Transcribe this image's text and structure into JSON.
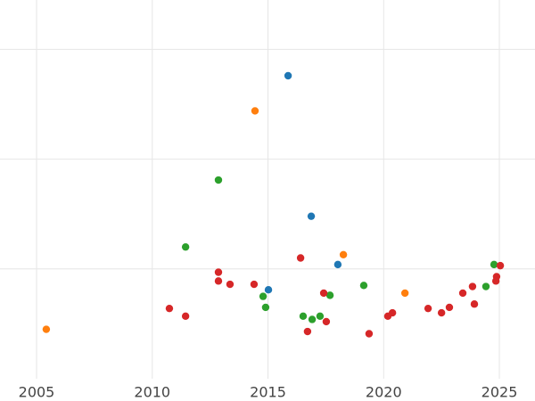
{
  "chart_data": {
    "type": "scatter",
    "xlim": [
      2003.42,
      2026.54
    ],
    "xticks": [
      2005,
      2010,
      2015,
      2020,
      2025
    ],
    "ylim": [
      0,
      3.45
    ],
    "yticks": [
      1,
      2,
      3
    ],
    "grid": true,
    "series": [
      {
        "color": "#1f77b4",
        "x": [
          2015.87,
          2016.87,
          2018.02,
          2015.02
        ],
        "values": [
          2.76,
          1.48,
          1.04,
          0.81
        ]
      },
      {
        "color": "#ff7f0e",
        "x": [
          2014.44,
          2018.26,
          2020.92,
          2005.42
        ],
        "values": [
          2.44,
          1.13,
          0.78,
          0.45
        ]
      },
      {
        "color": "#2ca02c",
        "x": [
          2012.86,
          2011.44,
          2014.79,
          2014.9,
          2016.52,
          2016.91,
          2017.25,
          2017.68,
          2019.14,
          2024.42,
          2024.77
        ],
        "values": [
          1.81,
          1.2,
          0.75,
          0.65,
          0.57,
          0.54,
          0.57,
          0.76,
          0.85,
          0.84,
          1.04
        ]
      },
      {
        "color": "#d62728",
        "x": [
          2012.86,
          2012.86,
          2013.36,
          2014.4,
          2010.74,
          2011.44,
          2016.41,
          2017.41,
          2017.52,
          2016.71,
          2019.37,
          2020.18,
          2020.38,
          2021.92,
          2022.5,
          2022.84,
          2023.42,
          2023.84,
          2023.92,
          2024.88,
          2024.85,
          2025.04
        ],
        "values": [
          0.97,
          0.89,
          0.86,
          0.86,
          0.64,
          0.57,
          1.1,
          0.78,
          0.52,
          0.43,
          0.41,
          0.57,
          0.6,
          0.64,
          0.6,
          0.65,
          0.78,
          0.84,
          0.68,
          0.93,
          0.89,
          1.03
        ]
      }
    ]
  }
}
